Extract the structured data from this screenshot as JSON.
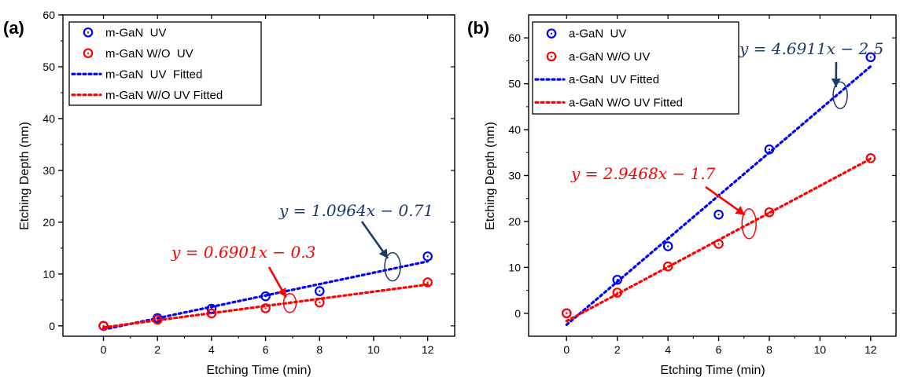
{
  "chart_data": [
    {
      "type": "scatter",
      "panel_label": "(a)",
      "xlabel": "Etching Time (min)",
      "ylabel": "Etching Depth (nm)",
      "xlim": [
        -1.5,
        13
      ],
      "ylim": [
        -2,
        60
      ],
      "xticks": [
        0,
        2,
        4,
        6,
        8,
        10,
        12
      ],
      "yticks": [
        0,
        10,
        20,
        30,
        40,
        50,
        60
      ],
      "x": [
        0,
        2,
        4,
        6,
        8,
        12
      ],
      "series": [
        {
          "name": "m-GaN  UV",
          "kind": "points",
          "color": "#0000ff",
          "y": [
            0,
            1.5,
            3.3,
            5.7,
            6.7,
            13.4
          ]
        },
        {
          "name": "m-GaN W/O  UV",
          "kind": "points",
          "color": "#ff0000",
          "y": [
            0,
            1.2,
            2.4,
            3.4,
            4.5,
            8.4
          ]
        },
        {
          "name": "m-GaN  UV  Fitted",
          "kind": "fit",
          "color": "#0000ff",
          "slope": 1.0964,
          "intercept": -0.71
        },
        {
          "name": "m-GaN W/O UV Fitted",
          "kind": "fit",
          "color": "#ff0000",
          "slope": 0.6901,
          "intercept": -0.3
        }
      ],
      "annotations": [
        {
          "text": "y = 1.0964x − 0.71",
          "color": "#1f3a68",
          "ellipse_at": [
            10.7,
            11.4
          ]
        },
        {
          "text": "y = 0.6901x − 0.3",
          "color": "#ff0000",
          "ellipse_at": [
            6.9,
            4.4
          ]
        }
      ],
      "legend_position": "top-left"
    },
    {
      "type": "scatter",
      "panel_label": "(b)",
      "xlabel": "Etching Time (min)",
      "ylabel": "Etching Depth (nm)",
      "xlim": [
        -1.5,
        13
      ],
      "ylim": [
        -5,
        65
      ],
      "xticks": [
        0,
        2,
        4,
        6,
        8,
        10,
        12
      ],
      "yticks": [
        0,
        10,
        20,
        30,
        40,
        50,
        60
      ],
      "x": [
        0,
        2,
        4,
        6,
        8,
        12
      ],
      "series": [
        {
          "name": "a-GaN  UV",
          "kind": "points",
          "color": "#0000ff",
          "y": [
            0,
            7.3,
            14.6,
            21.5,
            35.7,
            55.8
          ]
        },
        {
          "name": "a-GaN W/O UV",
          "kind": "points",
          "color": "#ff0000",
          "y": [
            0,
            4.5,
            10.2,
            15.1,
            22.0,
            33.8
          ]
        },
        {
          "name": "a-GaN  UV Fitted",
          "kind": "fit",
          "color": "#0000ff",
          "slope": 4.6911,
          "intercept": -2.5
        },
        {
          "name": "a-GaN W/O UV Fitted",
          "kind": "fit",
          "color": "#ff0000",
          "slope": 2.9468,
          "intercept": -1.7
        }
      ],
      "annotations": [
        {
          "text": "y = 4.6911x − 2.5",
          "color": "#1f3a68",
          "ellipse_at": [
            10.8,
            47.5
          ]
        },
        {
          "text": "y = 2.9468x − 1.7",
          "color": "#ff0000",
          "ellipse_at": [
            7.2,
            19.5
          ]
        }
      ],
      "legend_position": "top-left"
    }
  ]
}
